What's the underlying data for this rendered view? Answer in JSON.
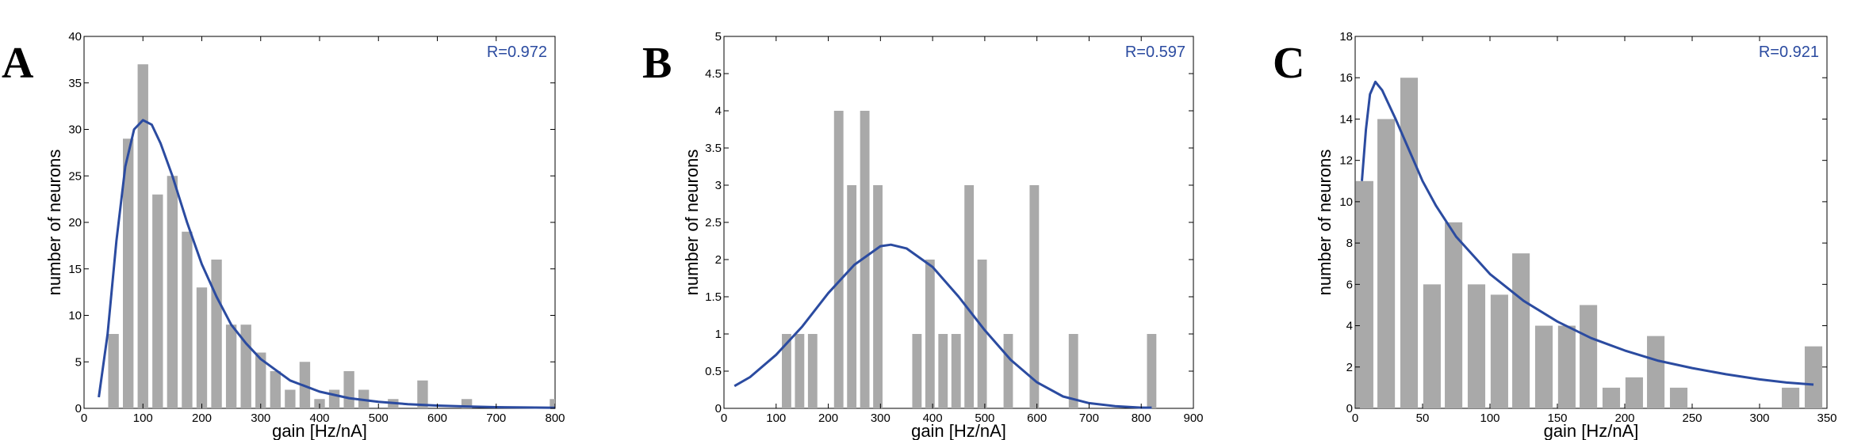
{
  "colors": {
    "bar": "#a9a9a9",
    "curve": "#2b4ba0",
    "axis": "#000000",
    "r_text": "#2b4ba0"
  },
  "chart_data": [
    {
      "type": "bar",
      "panel_label": "A",
      "annotation": "R=0.972",
      "xlabel": "gain [Hz/nA]",
      "ylabel": "number of neurons",
      "xlim": [
        0,
        800
      ],
      "ylim": [
        0,
        40
      ],
      "xticks": [
        0,
        100,
        200,
        300,
        400,
        500,
        600,
        700,
        800
      ],
      "yticks": [
        0,
        5,
        10,
        15,
        20,
        25,
        30,
        35,
        40
      ],
      "bar_width": 18,
      "bars": [
        {
          "x": 50,
          "y": 8
        },
        {
          "x": 75,
          "y": 29
        },
        {
          "x": 100,
          "y": 37
        },
        {
          "x": 125,
          "y": 23
        },
        {
          "x": 150,
          "y": 25
        },
        {
          "x": 175,
          "y": 19
        },
        {
          "x": 200,
          "y": 13
        },
        {
          "x": 225,
          "y": 16
        },
        {
          "x": 250,
          "y": 9
        },
        {
          "x": 275,
          "y": 9
        },
        {
          "x": 300,
          "y": 6
        },
        {
          "x": 325,
          "y": 4
        },
        {
          "x": 350,
          "y": 2
        },
        {
          "x": 375,
          "y": 5
        },
        {
          "x": 400,
          "y": 1
        },
        {
          "x": 425,
          "y": 2
        },
        {
          "x": 450,
          "y": 4
        },
        {
          "x": 475,
          "y": 2
        },
        {
          "x": 525,
          "y": 1
        },
        {
          "x": 575,
          "y": 3
        },
        {
          "x": 650,
          "y": 1
        },
        {
          "x": 800,
          "y": 1
        }
      ],
      "fit_curve": [
        [
          25,
          1.2
        ],
        [
          40,
          8
        ],
        [
          55,
          18
        ],
        [
          70,
          26
        ],
        [
          85,
          30
        ],
        [
          100,
          31
        ],
        [
          115,
          30.5
        ],
        [
          130,
          28.5
        ],
        [
          150,
          25
        ],
        [
          175,
          20
        ],
        [
          200,
          15.5
        ],
        [
          225,
          12
        ],
        [
          250,
          9
        ],
        [
          275,
          7
        ],
        [
          300,
          5.3
        ],
        [
          350,
          3
        ],
        [
          400,
          1.8
        ],
        [
          450,
          1.1
        ],
        [
          500,
          0.7
        ],
        [
          550,
          0.45
        ],
        [
          600,
          0.3
        ],
        [
          650,
          0.2
        ],
        [
          700,
          0.13
        ],
        [
          750,
          0.09
        ],
        [
          800,
          0.06
        ]
      ]
    },
    {
      "type": "bar",
      "panel_label": "B",
      "annotation": "R=0.597",
      "xlabel": "gain [Hz/nA]",
      "ylabel": "number of neurons",
      "xlim": [
        0,
        900
      ],
      "ylim": [
        0,
        5
      ],
      "xticks": [
        0,
        100,
        200,
        300,
        400,
        500,
        600,
        700,
        800,
        900
      ],
      "yticks": [
        0,
        0.5,
        1,
        1.5,
        2,
        2.5,
        3,
        3.5,
        4,
        4.5,
        5
      ],
      "bar_width": 18,
      "bars": [
        {
          "x": 120,
          "y": 1
        },
        {
          "x": 145,
          "y": 1
        },
        {
          "x": 170,
          "y": 1
        },
        {
          "x": 220,
          "y": 4
        },
        {
          "x": 245,
          "y": 3
        },
        {
          "x": 270,
          "y": 4
        },
        {
          "x": 295,
          "y": 3
        },
        {
          "x": 370,
          "y": 1
        },
        {
          "x": 395,
          "y": 2
        },
        {
          "x": 420,
          "y": 1
        },
        {
          "x": 445,
          "y": 1
        },
        {
          "x": 470,
          "y": 3
        },
        {
          "x": 495,
          "y": 2
        },
        {
          "x": 545,
          "y": 1
        },
        {
          "x": 595,
          "y": 3
        },
        {
          "x": 670,
          "y": 1
        },
        {
          "x": 820,
          "y": 1
        }
      ],
      "fit_curve": [
        [
          20,
          0.3
        ],
        [
          50,
          0.42
        ],
        [
          100,
          0.72
        ],
        [
          150,
          1.1
        ],
        [
          200,
          1.55
        ],
        [
          250,
          1.93
        ],
        [
          300,
          2.18
        ],
        [
          320,
          2.2
        ],
        [
          350,
          2.15
        ],
        [
          400,
          1.9
        ],
        [
          450,
          1.5
        ],
        [
          500,
          1.05
        ],
        [
          550,
          0.65
        ],
        [
          600,
          0.35
        ],
        [
          650,
          0.16
        ],
        [
          700,
          0.07
        ],
        [
          750,
          0.03
        ],
        [
          800,
          0.01
        ],
        [
          820,
          0.01
        ]
      ]
    },
    {
      "type": "bar",
      "panel_label": "C",
      "annotation": "R=0.921",
      "xlabel": "gain [Hz/nA]",
      "ylabel": "number of neurons",
      "xlim": [
        0,
        350
      ],
      "ylim": [
        0,
        18
      ],
      "xticks": [
        0,
        50,
        100,
        150,
        200,
        250,
        300,
        350
      ],
      "yticks": [
        0,
        2,
        4,
        6,
        8,
        10,
        12,
        14,
        16,
        18
      ],
      "bar_width": 13,
      "bars": [
        {
          "x": 7,
          "y": 11
        },
        {
          "x": 23,
          "y": 14
        },
        {
          "x": 40,
          "y": 16
        },
        {
          "x": 57,
          "y": 6
        },
        {
          "x": 73,
          "y": 9
        },
        {
          "x": 90,
          "y": 6
        },
        {
          "x": 107,
          "y": 5.5
        },
        {
          "x": 123,
          "y": 7.5
        },
        {
          "x": 140,
          "y": 4
        },
        {
          "x": 157,
          "y": 4
        },
        {
          "x": 173,
          "y": 5
        },
        {
          "x": 190,
          "y": 1
        },
        {
          "x": 207,
          "y": 1.5
        },
        {
          "x": 223,
          "y": 3.5
        },
        {
          "x": 240,
          "y": 1
        },
        {
          "x": 323,
          "y": 1
        },
        {
          "x": 340,
          "y": 3
        }
      ],
      "fit_curve": [
        [
          5,
          11
        ],
        [
          8,
          13.5
        ],
        [
          11,
          15.2
        ],
        [
          15,
          15.8
        ],
        [
          20,
          15.4
        ],
        [
          30,
          14
        ],
        [
          40,
          12.5
        ],
        [
          50,
          11
        ],
        [
          60,
          9.8
        ],
        [
          75,
          8.3
        ],
        [
          100,
          6.5
        ],
        [
          125,
          5.2
        ],
        [
          150,
          4.2
        ],
        [
          175,
          3.4
        ],
        [
          200,
          2.8
        ],
        [
          225,
          2.3
        ],
        [
          250,
          1.95
        ],
        [
          275,
          1.65
        ],
        [
          300,
          1.4
        ],
        [
          320,
          1.25
        ],
        [
          340,
          1.15
        ]
      ]
    }
  ]
}
